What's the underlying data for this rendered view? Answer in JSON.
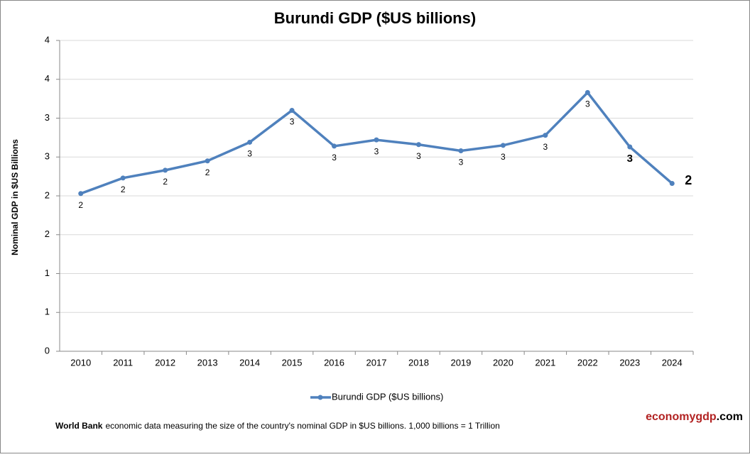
{
  "chart_data": {
    "type": "line",
    "title": "Burundi GDP ($US billions)",
    "y_label": "Nominal GDP in $US Billions",
    "categories": [
      "2010",
      "2011",
      "2012",
      "2013",
      "2014",
      "2015",
      "2016",
      "2017",
      "2018",
      "2019",
      "2020",
      "2021",
      "2022",
      "2023",
      "2024"
    ],
    "series": [
      {
        "name": "Burundi GDP ($US billions)",
        "color": "#4f81bd",
        "values": [
          2.03,
          2.23,
          2.33,
          2.45,
          2.69,
          3.1,
          2.64,
          2.72,
          2.66,
          2.58,
          2.65,
          2.78,
          3.33,
          2.63,
          2.16
        ],
        "value_labels": [
          "2",
          "2",
          "2",
          "2",
          "3",
          "3",
          "3",
          "3",
          "3",
          "3",
          "3",
          "3",
          "3",
          "3",
          "2"
        ]
      }
    ],
    "ylim": [
      0,
      4
    ],
    "yticks": [
      0,
      {
        "value": 0.5,
        "label": "1"
      },
      1,
      {
        "value": 1.5,
        "label": "2"
      },
      2,
      {
        "value": 2.5,
        "label": "3"
      },
      3,
      {
        "value": 3.5,
        "label": "4"
      },
      4
    ],
    "grid": true,
    "legend": "bottom",
    "source": "World Bank",
    "note": "economic data  measuring the size of the country's nominal GDP in $US billions. 1,000 billions = 1 Trillion",
    "brand_name": "economygdp",
    "brand_suffix": ".com"
  }
}
